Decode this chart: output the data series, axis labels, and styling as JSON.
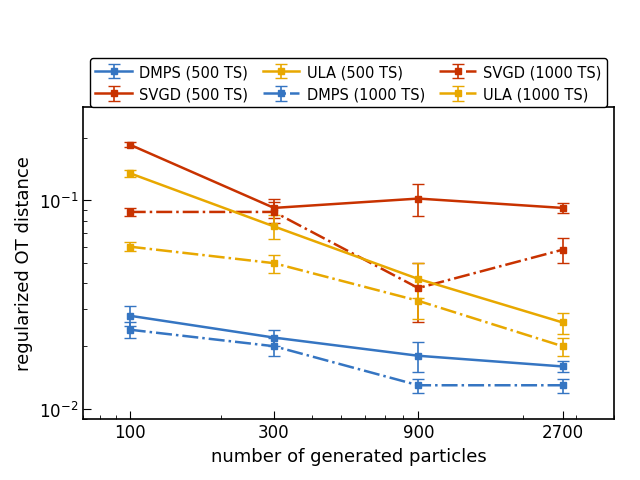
{
  "x": [
    100,
    300,
    900,
    2700
  ],
  "xlabel": "number of generated particles",
  "ylabel": "regularized OT distance",
  "series_order": [
    "DMPS_500",
    "DMPS_1000",
    "SVGD_500",
    "SVGD_1000",
    "ULA_500",
    "ULA_1000"
  ],
  "series": {
    "DMPS_500": {
      "y": [
        0.028,
        0.022,
        0.018,
        0.016
      ],
      "yerr": [
        0.003,
        0.002,
        0.003,
        0.001
      ],
      "color": "#3575c2",
      "linestyle": "solid",
      "label": "DMPS (500 TS)"
    },
    "DMPS_1000": {
      "y": [
        0.024,
        0.02,
        0.013,
        0.013
      ],
      "yerr": [
        0.002,
        0.002,
        0.001,
        0.001
      ],
      "color": "#3575c2",
      "linestyle": "dashdot",
      "label": "DMPS (1000 TS)"
    },
    "SVGD_500": {
      "y": [
        0.185,
        0.092,
        0.102,
        0.092
      ],
      "yerr": [
        0.005,
        0.01,
        0.018,
        0.005
      ],
      "color": "#c83200",
      "linestyle": "solid",
      "label": "SVGD (500 TS)"
    },
    "SVGD_1000": {
      "y": [
        0.088,
        0.088,
        0.038,
        0.058
      ],
      "yerr": [
        0.004,
        0.01,
        0.012,
        0.008
      ],
      "color": "#c83200",
      "linestyle": "dashdot",
      "label": "SVGD (1000 TS)"
    },
    "ULA_500": {
      "y": [
        0.135,
        0.075,
        0.042,
        0.026
      ],
      "yerr": [
        0.005,
        0.01,
        0.008,
        0.003
      ],
      "color": "#e8a800",
      "linestyle": "solid",
      "label": "ULA (500 TS)"
    },
    "ULA_1000": {
      "y": [
        0.06,
        0.05,
        0.033,
        0.02
      ],
      "yerr": [
        0.003,
        0.005,
        0.006,
        0.002
      ],
      "color": "#e8a800",
      "linestyle": "dashdot",
      "label": "ULA (1000 TS)"
    }
  },
  "legend_order": [
    "DMPS_500",
    "SVGD_500",
    "ULA_500",
    "DMPS_1000",
    "SVGD_1000",
    "ULA_1000"
  ],
  "background_color": "#ffffff",
  "tick_fontsize": 12,
  "label_fontsize": 13,
  "legend_fontsize": 10.5
}
